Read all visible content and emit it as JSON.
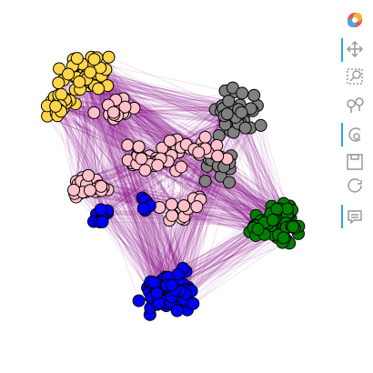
{
  "clusters": [
    {
      "color": "#ffd54a"
    },
    {
      "color": "#808080"
    },
    {
      "color": "#ffc0cb"
    },
    {
      "color": "#008000"
    },
    {
      "color": "#0000ff"
    }
  ],
  "edge_color": "#800080"
}
